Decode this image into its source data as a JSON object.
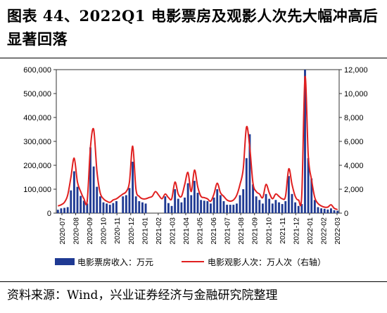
{
  "title": "图表 44、2022Q1 电影票房及观影人次先大幅冲高后显著回落",
  "source": "资料来源：Wind，兴业证券经济与金融研究院整理",
  "chart_data": {
    "type": "bar",
    "y_left": {
      "ticks": [
        "0",
        "100,000",
        "200,000",
        "300,000",
        "400,000",
        "500,000",
        "600,000"
      ],
      "lim": [
        0,
        600000
      ]
    },
    "y_right": {
      "ticks": [
        "0",
        "2,000",
        "4,000",
        "6,000",
        "8,000",
        "10,000",
        "12,000"
      ],
      "lim": [
        0,
        12000
      ]
    },
    "x_ticks": [
      "2020-07",
      "2020-08",
      "2020-09",
      "2020-10",
      "2020-11",
      "2020-12",
      "2021-01",
      "2021-02",
      "2021-03",
      "2021-04",
      "2021-05",
      "2021-06",
      "2021-07",
      "2021-08",
      "2021-09",
      "2021-10",
      "2021-11",
      "2021-12",
      "2022-01",
      "2022-02",
      "2022-03"
    ],
    "colors": {
      "bar": "#1F3A93",
      "line": "#E02020"
    },
    "series": [
      {
        "name": "电影票房收入：万元",
        "values": [
          14000,
          20000,
          22000,
          25000,
          95000,
          175000,
          110000,
          72000,
          52000,
          40000,
          275000,
          195000,
          110000,
          70000,
          45000,
          40000,
          35000,
          42000,
          50000,
          0,
          70000,
          75000,
          105000,
          215000,
          70000,
          50000,
          45000,
          40000,
          0,
          0,
          0,
          0,
          0,
          70000,
          42000,
          30000,
          100000,
          60000,
          45000,
          65000,
          125000,
          75000,
          135000,
          85000,
          55000,
          52000,
          50000,
          40000,
          65000,
          100000,
          75000,
          50000,
          35000,
          35000,
          35000,
          40000,
          75000,
          100000,
          230000,
          330000,
          120000,
          70000,
          55000,
          40000,
          80000,
          60000,
          40000,
          55000,
          45000,
          38000,
          50000,
          155000,
          80000,
          45000,
          30000,
          38000,
          600000,
          230000,
          145000,
          55000,
          25000,
          20000,
          18000,
          15000,
          20000,
          12000,
          10000
        ]
      },
      {
        "name": "电影观影人次：万人次（右轴）",
        "values": [
          600,
          700,
          900,
          1500,
          3000,
          4600,
          2600,
          1800,
          1200,
          1000,
          5500,
          7000,
          3500,
          1700,
          1200,
          1000,
          900,
          1100,
          1200,
          1400,
          1600,
          1800,
          2600,
          5600,
          2000,
          1400,
          1200,
          1200,
          1300,
          1400,
          1800,
          1500,
          1200,
          1600,
          1300,
          1200,
          2600,
          1600,
          1400,
          2400,
          3400,
          1800,
          3600,
          2200,
          1400,
          1300,
          1200,
          1000,
          1600,
          2500,
          1700,
          1400,
          1100,
          1000,
          1100,
          1500,
          2400,
          3700,
          7200,
          5500,
          2500,
          1800,
          1600,
          1300,
          2400,
          1700,
          1200,
          1600,
          1400,
          1200,
          1400,
          3700,
          2400,
          1400,
          1100,
          1500,
          11400,
          4800,
          2800,
          1300,
          800,
          600,
          500,
          500,
          700,
          400,
          300
        ]
      }
    ],
    "legend": "bottom"
  }
}
